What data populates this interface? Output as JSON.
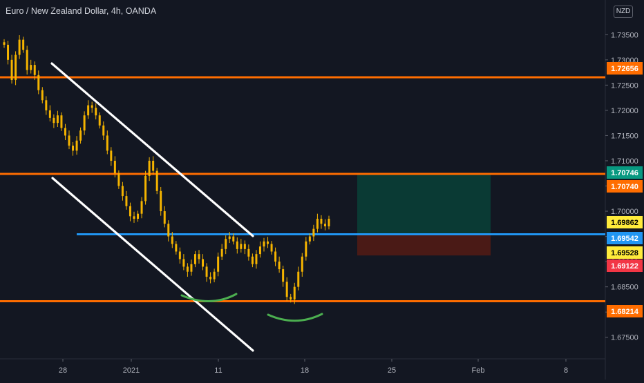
{
  "header": {
    "title": "Euro / New Zealand Dollar, 4h, OANDA",
    "currency_badge": "NZD"
  },
  "colors": {
    "background": "#131722",
    "candle": "#f5b400",
    "resistance_line": "#ff6d00",
    "neckline": "#2196f3",
    "channel": "#ffffff",
    "pattern_arc": "#4caf50",
    "target_zone": "#0a3a34",
    "stop_zone": "#4a1a16"
  },
  "chart_data": {
    "type": "candlestick",
    "symbol": "Euro / New Zealand Dollar",
    "interval": "4h",
    "source": "OANDA",
    "x_tick_labels": [
      "28",
      "2021",
      "11",
      "18",
      "25",
      "Feb",
      "8"
    ],
    "y_axis": {
      "min": 1.6725,
      "max": 1.7375,
      "tick_labels": [
        "1.73500",
        "1.73000",
        "1.72500",
        "1.72000",
        "1.71500",
        "1.71000",
        "1.70500",
        "1.70000",
        "1.69500",
        "1.69000",
        "1.68500",
        "1.68000",
        "1.67500"
      ]
    },
    "price_labels": [
      {
        "value": "1.72656",
        "bg": "#ff6d00",
        "fg": "#ffffff"
      },
      {
        "value": "1.70746",
        "bg": "#089981",
        "fg": "#ffffff"
      },
      {
        "value": "1.70740",
        "bg": "#ff6d00",
        "fg": "#ffffff"
      },
      {
        "value": "1.69862",
        "bg": "#ffeb3b",
        "fg": "#000000"
      },
      {
        "value": "1.69542",
        "bg": "#2196f3",
        "fg": "#ffffff"
      },
      {
        "value": "1.69528",
        "bg": "#ffeb3b",
        "fg": "#000000"
      },
      {
        "value": "1.69122",
        "bg": "#f23645",
        "fg": "#ffffff"
      },
      {
        "value": "1.68214",
        "bg": "#ff6d00",
        "fg": "#ffffff"
      }
    ],
    "horizontal_levels": [
      {
        "price": 1.72656,
        "color": "#ff6d00",
        "extent": "full"
      },
      {
        "price": 1.7074,
        "color": "#ff6d00",
        "extent": "full"
      },
      {
        "price": 1.68214,
        "color": "#ff6d00",
        "extent": "full"
      },
      {
        "price": 1.69542,
        "color": "#2196f3",
        "extent": "from-Dec-29"
      }
    ],
    "position": {
      "entry": 1.69542,
      "target": 1.70746,
      "stop": 1.69122
    },
    "close_values": [
      1.733,
      1.73,
      1.726,
      1.731,
      1.734,
      1.732,
      1.728,
      1.729,
      1.727,
      1.724,
      1.722,
      1.72,
      1.7185,
      1.7175,
      1.719,
      1.7165,
      1.715,
      1.713,
      1.712,
      1.714,
      1.716,
      1.719,
      1.721,
      1.7205,
      1.719,
      1.717,
      1.715,
      1.712,
      1.71,
      1.7075,
      1.705,
      1.703,
      1.701,
      1.699,
      1.6985,
      1.6995,
      1.702,
      1.707,
      1.71,
      1.708,
      1.704,
      1.7,
      1.6975,
      1.695,
      1.6935,
      1.692,
      1.6905,
      1.689,
      1.688,
      1.6895,
      1.6915,
      1.6905,
      1.689,
      1.687,
      1.6865,
      1.688,
      1.691,
      1.6925,
      1.6945,
      1.695,
      1.694,
      1.6925,
      1.6935,
      1.6925,
      1.691,
      1.6895,
      1.6915,
      1.693,
      1.694,
      1.6935,
      1.692,
      1.69,
      1.6885,
      1.686,
      1.683,
      1.6825,
      1.685,
      1.688,
      1.691,
      1.694,
      1.695,
      1.6965,
      1.6985,
      1.6975,
      1.697,
      1.6985
    ],
    "annotations": [
      "descending channel (two parallel white lines)",
      "inverse head & shoulders arcs (green)",
      "long position box: target (teal) and stop (red)"
    ]
  }
}
